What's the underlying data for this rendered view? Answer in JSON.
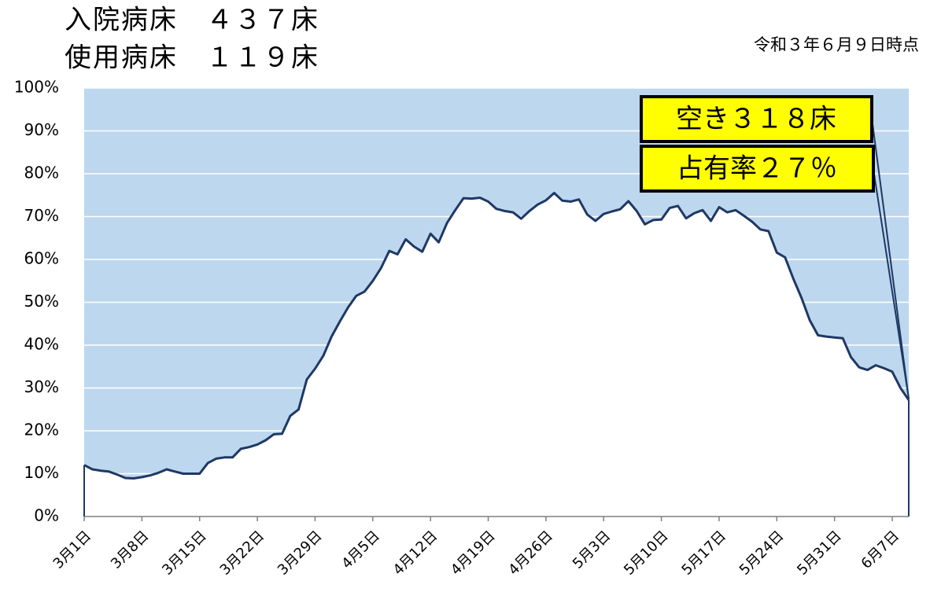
{
  "chart_data": {
    "type": "area",
    "title_lines": [
      "入院病床　４３７床",
      "使用病床　１１９床"
    ],
    "subtitle": "令和３年６月９日時点",
    "annotations": [
      "空き３１８床",
      "占有率２７％"
    ],
    "categories": [
      "3月1日",
      null,
      null,
      null,
      null,
      null,
      null,
      "3月8日",
      null,
      null,
      null,
      null,
      null,
      null,
      "3月15日",
      null,
      null,
      null,
      null,
      null,
      null,
      "3月22日",
      null,
      null,
      null,
      null,
      null,
      null,
      "3月29日",
      null,
      null,
      null,
      null,
      null,
      null,
      "4月5日",
      null,
      null,
      null,
      null,
      null,
      null,
      "4月12日",
      null,
      null,
      null,
      null,
      null,
      null,
      "4月19日",
      null,
      null,
      null,
      null,
      null,
      null,
      "4月26日",
      null,
      null,
      null,
      null,
      null,
      null,
      "5月3日",
      null,
      null,
      null,
      null,
      null,
      null,
      "5月10日",
      null,
      null,
      null,
      null,
      null,
      null,
      "5月17日",
      null,
      null,
      null,
      null,
      null,
      null,
      "5月24日",
      null,
      null,
      null,
      null,
      null,
      null,
      "5月31日",
      null,
      null,
      null,
      null,
      null,
      null,
      "6月7日",
      null,
      null
    ],
    "values": [
      12,
      11,
      10.7,
      10.5,
      9.8,
      9,
      8.9,
      9.2,
      9.6,
      10.2,
      11,
      10.5,
      10,
      10,
      10,
      12.5,
      13.5,
      13.8,
      13.8,
      15.8,
      16.2,
      16.8,
      17.8,
      19.2,
      19.3,
      23.5,
      25,
      32,
      34.5,
      37.5,
      42,
      45.5,
      48.8,
      51.5,
      52.5,
      55,
      58,
      62,
      61.2,
      64.7,
      63,
      61.8,
      66,
      64,
      68.5,
      71.5,
      74.3,
      74.2,
      74.4,
      73.5,
      71.8,
      71.3,
      71,
      69.5,
      71.3,
      72.8,
      73.8,
      75.5,
      73.7,
      73.5,
      74,
      70.5,
      69,
      70.6,
      71.2,
      71.7,
      73.6,
      71.3,
      68.2,
      69.2,
      69.3,
      72,
      72.5,
      69.6,
      70.8,
      71.5,
      69,
      72.2,
      71,
      71.5,
      70.2,
      68.8,
      67,
      66.6,
      61.6,
      60.5,
      55.5,
      51,
      45.8,
      42.3,
      42,
      41.8,
      41.6,
      37.2,
      34.8,
      34.2,
      35.3,
      34.6,
      33.8,
      30,
      27.2
    ],
    "color": "#1f3864",
    "background_color": "#bdd7ee",
    "ylim": [
      0,
      100
    ],
    "yticks": [
      {
        "value": 0,
        "label": "0%"
      },
      {
        "value": 10,
        "label": "10%"
      },
      {
        "value": 20,
        "label": "20%"
      },
      {
        "value": 30,
        "label": "30%"
      },
      {
        "value": 40,
        "label": "40%"
      },
      {
        "value": 50,
        "label": "50%"
      },
      {
        "value": 60,
        "label": "60%"
      },
      {
        "value": 70,
        "label": "70%"
      },
      {
        "value": 80,
        "label": "80%"
      },
      {
        "value": 90,
        "label": "90%"
      },
      {
        "value": 100,
        "label": "100%"
      }
    ],
    "grid": true
  }
}
